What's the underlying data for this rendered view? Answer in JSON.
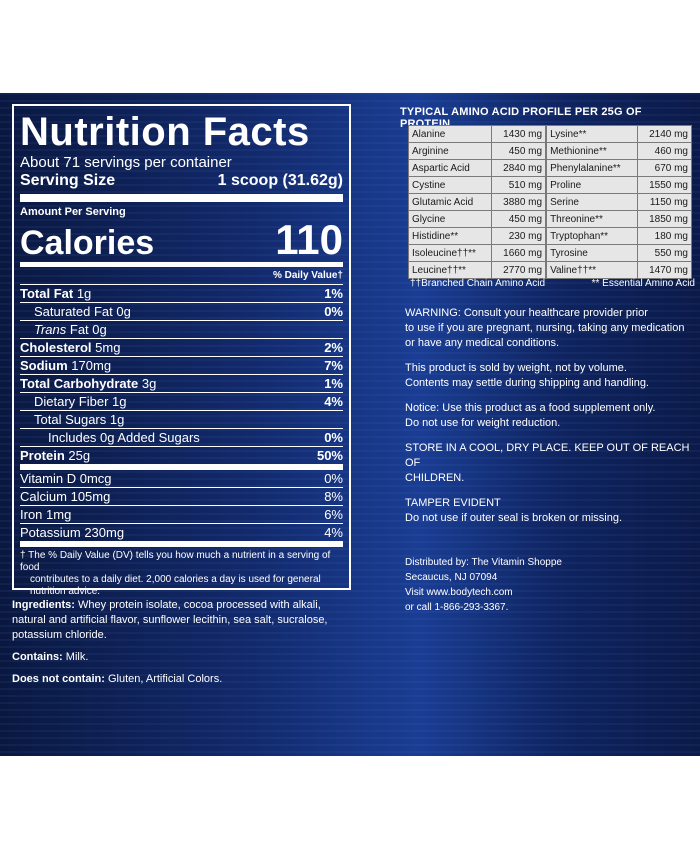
{
  "nutrition": {
    "title": "Nutrition Facts",
    "servings_per_container": "About 71 servings per container",
    "serving_size_label": "Serving Size",
    "serving_size_value": "1 scoop (31.62g)",
    "amount_per_serving": "Amount Per Serving",
    "calories_label": "Calories",
    "calories_value": "110",
    "daily_value_header": "% Daily Value†",
    "rows": [
      {
        "label": "Total Fat",
        "amount": "1g",
        "dv": "1%"
      },
      {
        "label": "Saturated Fat",
        "amount": "0g",
        "dv": "0%"
      },
      {
        "label": "Trans",
        "amount": "Fat 0g",
        "dv": ""
      },
      {
        "label": "Cholesterol",
        "amount": "5mg",
        "dv": "2%"
      },
      {
        "label": "Sodium",
        "amount": "170mg",
        "dv": "7%"
      },
      {
        "label": "Total Carbohydrate",
        "amount": "3g",
        "dv": "1%"
      },
      {
        "label": "Dietary Fiber",
        "amount": "1g",
        "dv": "4%"
      },
      {
        "label": "Total Sugars",
        "amount": "1g",
        "dv": ""
      },
      {
        "label": "Includes 0g Added Sugars",
        "amount": "",
        "dv": "0%"
      },
      {
        "label": "Protein",
        "amount": "25g",
        "dv": "50%"
      },
      {
        "label": "Vitamin D",
        "amount": "0mcg",
        "dv": "0%"
      },
      {
        "label": "Calcium",
        "amount": "105mg",
        "dv": "8%"
      },
      {
        "label": "Iron",
        "amount": "1mg",
        "dv": "6%"
      },
      {
        "label": "Potassium",
        "amount": "230mg",
        "dv": "4%"
      }
    ],
    "footnote_line1": "† The % Daily Value (DV) tells you how much a nutrient in a serving of food",
    "footnote_line2": "contributes to a daily diet. 2,000 calories a day is used for general",
    "footnote_line3": "nutrition advice."
  },
  "ingredients": {
    "ingredients_label": "Ingredients:",
    "ingredients_text": "Whey protein isolate, cocoa processed with alkali, natural and artificial flavor, sunflower lecithin, sea salt, sucralose, potassium chloride.",
    "contains_label": "Contains:",
    "contains_text": "Milk.",
    "not_contain_label": "Does not contain:",
    "not_contain_text": "Gluten, Artificial Colors."
  },
  "amino": {
    "title": "TYPICAL AMINO ACID PROFILE PER 25G OF PROTEIN",
    "rows": [
      {
        "n1": "Alanine",
        "v1": "1430 mg",
        "n2": "Lysine**",
        "v2": "2140 mg"
      },
      {
        "n1": "Arginine",
        "v1": "450 mg",
        "n2": "Methionine**",
        "v2": "460 mg"
      },
      {
        "n1": "Aspartic Acid",
        "v1": "2840 mg",
        "n2": "Phenylalanine**",
        "v2": "670 mg"
      },
      {
        "n1": "Cystine",
        "v1": "510 mg",
        "n2": "Proline",
        "v2": "1550 mg"
      },
      {
        "n1": "Glutamic Acid",
        "v1": "3880 mg",
        "n2": "Serine",
        "v2": "1150 mg"
      },
      {
        "n1": "Glycine",
        "v1": "450 mg",
        "n2": "Threonine**",
        "v2": "1850 mg"
      },
      {
        "n1": "Histidine**",
        "v1": "230 mg",
        "n2": "Tryptophan**",
        "v2": "180 mg"
      },
      {
        "n1": "Isoleucine††**",
        "v1": "1660 mg",
        "n2": "Tyrosine",
        "v2": "550 mg"
      },
      {
        "n1": "Leucine††**",
        "v1": "2770 mg",
        "n2": "Valine††**",
        "v2": "1470 mg"
      }
    ],
    "note_bcaa": "††Branched Chain Amino Acid",
    "note_essential": "** Essential Amino Acid"
  },
  "warnings": {
    "warning_l1": "WARNING: Consult your healthcare provider prior",
    "warning_l2": "to use if you are pregnant, nursing, taking any medication",
    "warning_l3": "or have any medical conditions.",
    "weight_l1": "This product is sold by weight, not by volume.",
    "weight_l2": "Contents may settle during shipping and handling.",
    "notice_l1": "Notice: Use this product as a food supplement only.",
    "notice_l2": "Do not use for weight reduction.",
    "store_l1": "STORE IN A COOL, DRY PLACE. KEEP OUT OF REACH OF",
    "store_l2": "CHILDREN.",
    "tamper_l1": "TAMPER EVIDENT",
    "tamper_l2": "Do not use if outer seal is broken or missing."
  },
  "distributor": {
    "line1": "Distributed by: The Vitamin Shoppe",
    "line2": "Secaucus, NJ 07094",
    "line3": "Visit www.bodytech.com",
    "line4": "or call 1-866-293-3367."
  }
}
